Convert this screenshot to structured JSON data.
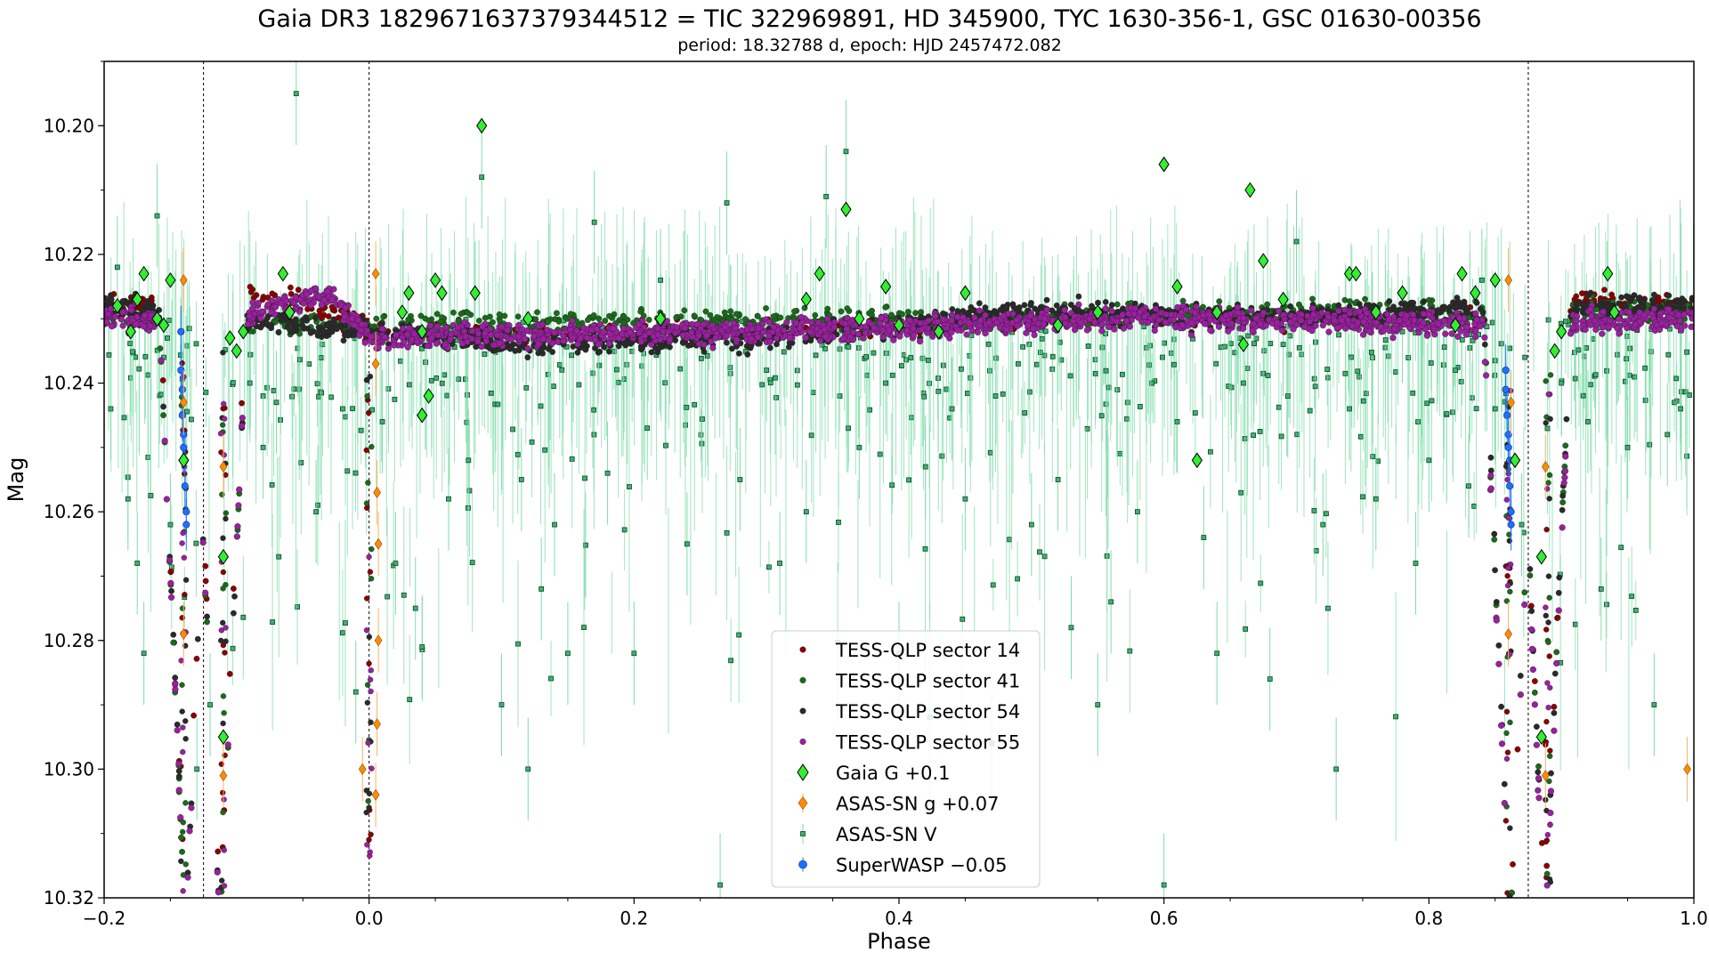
{
  "chart_data": {
    "type": "scatter",
    "title": "Gaia DR3 1829671637379344512 = TIC 322969891, HD 345900, TYC 1630-356-1, GSC 01630-00356",
    "subtitle": "period: 18.32788 d, epoch: HJD 2457472.082",
    "xlabel": "Phase",
    "ylabel": "Mag",
    "xlim": [
      -0.2,
      1.0
    ],
    "ylim": [
      10.32,
      10.19
    ],
    "y_inverted": true,
    "x_ticks": [
      -0.2,
      0.0,
      0.2,
      0.4,
      0.6,
      0.8,
      1.0
    ],
    "x_tick_labels": [
      "−0.2",
      "0.0",
      "0.2",
      "0.4",
      "0.6",
      "0.8",
      "1.0"
    ],
    "y_ticks": [
      10.2,
      10.22,
      10.24,
      10.26,
      10.28,
      10.3,
      10.32
    ],
    "y_tick_labels": [
      "10.20",
      "10.22",
      "10.24",
      "10.26",
      "10.28",
      "10.30",
      "10.32"
    ],
    "vertical_lines": [
      -0.125,
      0.0,
      0.875
    ],
    "legend_position": "bottom-center",
    "grid": false,
    "series": [
      {
        "name": "TESS-QLP sector 14",
        "color": "#8b0000",
        "marker": "circle",
        "baseline_segments": [
          [
            -0.2,
            10.228
          ],
          [
            -0.11,
            10.226
          ],
          [
            -0.05,
            10.227
          ],
          [
            0.0,
            10.232
          ],
          [
            0.5,
            10.231
          ],
          [
            0.86,
            10.229
          ],
          [
            0.89,
            10.227
          ],
          [
            1.0,
            10.228
          ]
        ]
      },
      {
        "name": "TESS-QLP sector 41",
        "color": "#1a6b1a",
        "marker": "circle",
        "baseline_segments": [
          [
            -0.2,
            10.23
          ],
          [
            0.0,
            10.231
          ],
          [
            0.4,
            10.23
          ],
          [
            0.7,
            10.229
          ],
          [
            1.0,
            10.229
          ]
        ]
      },
      {
        "name": "TESS-QLP sector 54",
        "color": "#2a2a2a",
        "marker": "circle",
        "baseline_segments": [
          [
            -0.2,
            10.228
          ],
          [
            0.0,
            10.232
          ],
          [
            0.12,
            10.234
          ],
          [
            0.3,
            10.233
          ],
          [
            0.5,
            10.229
          ],
          [
            0.7,
            10.23
          ],
          [
            0.86,
            10.228
          ],
          [
            1.0,
            10.228
          ]
        ]
      },
      {
        "name": "TESS-QLP sector 55",
        "color": "#9b1fa0",
        "marker": "circle",
        "baseline_segments": [
          [
            -0.2,
            10.23
          ],
          [
            -0.1,
            10.23
          ],
          [
            -0.03,
            10.226
          ],
          [
            0.0,
            10.233
          ],
          [
            0.3,
            10.232
          ],
          [
            0.6,
            10.23
          ],
          [
            0.86,
            10.231
          ],
          [
            1.0,
            10.23
          ]
        ]
      },
      {
        "name": "Gaia G +0.1",
        "color": "#33ee33",
        "marker": "diamond",
        "points": [
          [
            -0.19,
            10.228
          ],
          [
            -0.18,
            10.232
          ],
          [
            -0.175,
            10.227
          ],
          [
            -0.17,
            10.223
          ],
          [
            -0.16,
            10.23
          ],
          [
            -0.155,
            10.231
          ],
          [
            -0.15,
            10.224
          ],
          [
            -0.14,
            10.252
          ],
          [
            -0.11,
            10.267
          ],
          [
            -0.11,
            10.295
          ],
          [
            -0.105,
            10.233
          ],
          [
            -0.1,
            10.235
          ],
          [
            -0.095,
            10.232
          ],
          [
            -0.065,
            10.223
          ],
          [
            -0.06,
            10.229
          ],
          [
            0.025,
            10.229
          ],
          [
            0.03,
            10.226
          ],
          [
            0.04,
            10.232
          ],
          [
            0.045,
            10.242
          ],
          [
            0.04,
            10.245
          ],
          [
            0.05,
            10.224
          ],
          [
            0.055,
            10.226
          ],
          [
            0.085,
            10.2
          ],
          [
            0.08,
            10.226
          ],
          [
            0.12,
            10.23
          ],
          [
            0.22,
            10.23
          ],
          [
            0.33,
            10.227
          ],
          [
            0.34,
            10.223
          ],
          [
            0.36,
            10.213
          ],
          [
            0.37,
            10.23
          ],
          [
            0.39,
            10.225
          ],
          [
            0.4,
            10.231
          ],
          [
            0.43,
            10.232
          ],
          [
            0.45,
            10.226
          ],
          [
            0.52,
            10.231
          ],
          [
            0.55,
            10.229
          ],
          [
            0.6,
            10.206
          ],
          [
            0.61,
            10.225
          ],
          [
            0.625,
            10.252
          ],
          [
            0.64,
            10.229
          ],
          [
            0.66,
            10.234
          ],
          [
            0.665,
            10.21
          ],
          [
            0.675,
            10.221
          ],
          [
            0.69,
            10.227
          ],
          [
            0.74,
            10.223
          ],
          [
            0.745,
            10.223
          ],
          [
            0.76,
            10.229
          ],
          [
            0.78,
            10.226
          ],
          [
            0.82,
            10.231
          ],
          [
            0.825,
            10.223
          ],
          [
            0.835,
            10.226
          ],
          [
            0.85,
            10.224
          ],
          [
            0.865,
            10.252
          ],
          [
            0.885,
            10.267
          ],
          [
            0.885,
            10.295
          ],
          [
            0.895,
            10.235
          ],
          [
            0.9,
            10.232
          ],
          [
            0.935,
            10.223
          ],
          [
            0.94,
            10.229
          ]
        ]
      },
      {
        "name": "ASAS-SN g +0.07",
        "color": "#ff8c00",
        "marker": "diamond",
        "points": [
          [
            -0.14,
            10.224
          ],
          [
            -0.14,
            10.279
          ],
          [
            -0.14,
            10.243
          ],
          [
            -0.11,
            10.253
          ],
          [
            -0.11,
            10.301
          ],
          [
            -0.005,
            10.3
          ],
          [
            0.005,
            10.223
          ],
          [
            0.005,
            10.237
          ],
          [
            0.006,
            10.257
          ],
          [
            0.007,
            10.265
          ],
          [
            0.007,
            10.28
          ],
          [
            0.006,
            10.293
          ],
          [
            0.005,
            10.304
          ],
          [
            0.86,
            10.224
          ],
          [
            0.86,
            10.279
          ],
          [
            0.862,
            10.243
          ],
          [
            0.888,
            10.253
          ],
          [
            0.888,
            10.301
          ],
          [
            0.995,
            10.3
          ]
        ]
      },
      {
        "name": "ASAS-SN V",
        "color": "#3cb371",
        "marker": "square",
        "points": [
          [
            -0.195,
            10.244
          ],
          [
            -0.19,
            10.222
          ],
          [
            -0.182,
            10.258
          ],
          [
            -0.175,
            10.268
          ],
          [
            -0.17,
            10.282
          ],
          [
            -0.16,
            10.214
          ],
          [
            -0.155,
            10.236
          ],
          [
            -0.15,
            10.262
          ],
          [
            -0.13,
            10.3
          ],
          [
            -0.12,
            10.29
          ],
          [
            -0.09,
            10.24
          ],
          [
            -0.08,
            10.25
          ],
          [
            -0.07,
            10.243
          ],
          [
            -0.055,
            10.195
          ],
          [
            -0.04,
            10.26
          ],
          [
            -0.02,
            10.244
          ],
          [
            -0.01,
            10.288
          ],
          [
            0.01,
            10.246
          ],
          [
            0.02,
            10.268
          ],
          [
            0.035,
            10.275
          ],
          [
            0.04,
            10.281
          ],
          [
            0.06,
            10.258
          ],
          [
            0.075,
            10.252
          ],
          [
            0.08,
            10.226
          ],
          [
            0.085,
            10.208
          ],
          [
            0.1,
            10.29
          ],
          [
            0.115,
            10.255
          ],
          [
            0.12,
            10.3
          ],
          [
            0.13,
            10.272
          ],
          [
            0.14,
            10.262
          ],
          [
            0.15,
            10.282
          ],
          [
            0.17,
            10.215
          ],
          [
            0.18,
            10.254
          ],
          [
            0.2,
            10.282
          ],
          [
            0.21,
            10.247
          ],
          [
            0.22,
            10.224
          ],
          [
            0.24,
            10.265
          ],
          [
            0.265,
            10.318
          ],
          [
            0.27,
            10.212
          ],
          [
            0.28,
            10.255
          ],
          [
            0.3,
            10.238
          ],
          [
            0.31,
            10.268
          ],
          [
            0.33,
            10.26
          ],
          [
            0.345,
            10.211
          ],
          [
            0.36,
            10.204
          ],
          [
            0.37,
            10.25
          ],
          [
            0.39,
            10.24
          ],
          [
            0.4,
            10.282
          ],
          [
            0.42,
            10.253
          ],
          [
            0.44,
            10.244
          ],
          [
            0.45,
            10.258
          ],
          [
            0.47,
            10.296
          ],
          [
            0.49,
            10.237
          ],
          [
            0.5,
            10.262
          ],
          [
            0.52,
            10.255
          ],
          [
            0.53,
            10.278
          ],
          [
            0.55,
            10.29
          ],
          [
            0.56,
            10.274
          ],
          [
            0.58,
            10.26
          ],
          [
            0.6,
            10.318
          ],
          [
            0.61,
            10.246
          ],
          [
            0.63,
            10.264
          ],
          [
            0.64,
            10.282
          ],
          [
            0.66,
            10.24
          ],
          [
            0.68,
            10.286
          ],
          [
            0.69,
            10.234
          ],
          [
            0.7,
            10.218
          ],
          [
            0.72,
            10.262
          ],
          [
            0.73,
            10.3
          ],
          [
            0.74,
            10.244
          ],
          [
            0.76,
            10.258
          ],
          [
            0.78,
            10.232
          ],
          [
            0.79,
            10.268
          ],
          [
            0.8,
            10.252
          ],
          [
            0.82,
            10.238
          ],
          [
            0.83,
            10.256
          ],
          [
            0.84,
            10.224
          ],
          [
            0.85,
            10.244
          ],
          [
            0.87,
            10.262
          ],
          [
            0.9,
            10.24
          ],
          [
            0.92,
            10.246
          ],
          [
            0.93,
            10.272
          ],
          [
            0.95,
            10.25
          ],
          [
            0.97,
            10.29
          ],
          [
            0.98,
            10.248
          ],
          [
            0.99,
            10.244
          ]
        ]
      },
      {
        "name": "SuperWASP −0.05",
        "color": "#1f6fff",
        "marker": "circle",
        "points": [
          [
            -0.142,
            10.232
          ],
          [
            -0.142,
            10.238
          ],
          [
            -0.141,
            10.241
          ],
          [
            -0.141,
            10.245
          ],
          [
            -0.14,
            10.248
          ],
          [
            -0.14,
            10.25
          ],
          [
            -0.139,
            10.252
          ],
          [
            -0.139,
            10.256
          ],
          [
            -0.138,
            10.26
          ],
          [
            -0.138,
            10.262
          ],
          [
            0.858,
            10.238
          ],
          [
            0.858,
            10.241
          ],
          [
            0.859,
            10.245
          ],
          [
            0.86,
            10.248
          ],
          [
            0.86,
            10.25
          ],
          [
            0.861,
            10.252
          ],
          [
            0.861,
            10.256
          ],
          [
            0.862,
            10.26
          ],
          [
            0.862,
            10.262
          ]
        ]
      }
    ]
  }
}
